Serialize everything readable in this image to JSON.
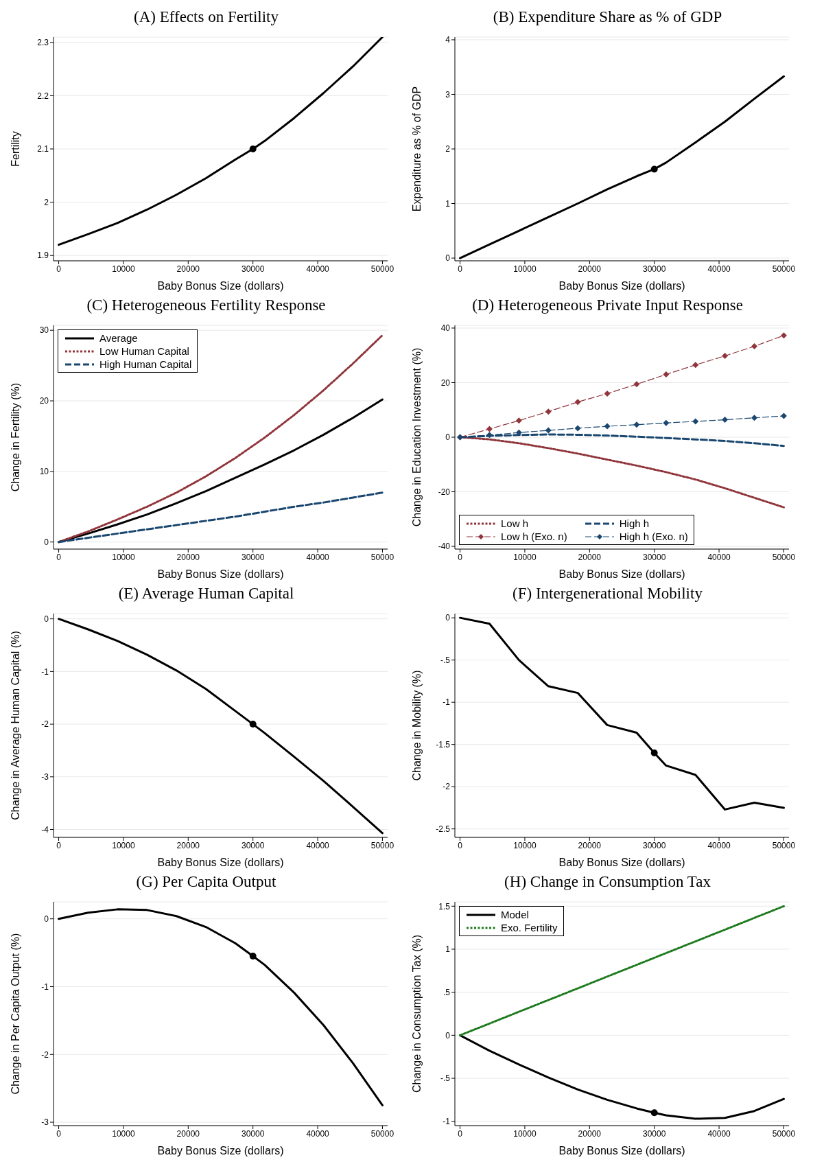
{
  "chart_data": [
    {
      "type": "line",
      "title": "(A) Effects on Fertility",
      "xlabel": "Baby Bonus Size (dollars)",
      "ylabel": "Fertility",
      "xlim": [
        -800,
        50800
      ],
      "xticks": [
        0,
        10000,
        20000,
        30000,
        40000,
        50000
      ],
      "ylim": [
        1.89,
        2.31
      ],
      "yticks": [
        1.9,
        2,
        2.1,
        2.2,
        2.3
      ],
      "grid": "y",
      "legend": false,
      "series": [
        {
          "color": "#000000",
          "line_style": "solid",
          "marker": "none",
          "x": [
            0,
            4545,
            9091,
            13636,
            18182,
            22727,
            27273,
            30000,
            31818,
            36364,
            40909,
            45455,
            50000
          ],
          "values": [
            1.92,
            1.94,
            1.961,
            1.986,
            2.014,
            2.045,
            2.08,
            2.1,
            2.115,
            2.158,
            2.205,
            2.255,
            2.31
          ]
        },
        {
          "type": "scatter",
          "color": "#000000",
          "marker": "circle",
          "x": [
            30000
          ],
          "values": [
            2.1
          ]
        }
      ]
    },
    {
      "type": "line",
      "title": "(B) Expenditure Share as % of GDP",
      "xlabel": "Baby Bonus Size (dollars)",
      "ylabel": "Expenditure as % of GDP",
      "xlim": [
        -800,
        50800
      ],
      "xticks": [
        0,
        10000,
        20000,
        30000,
        40000,
        50000
      ],
      "ylim": [
        -0.05,
        4.05
      ],
      "yticks": [
        0,
        1,
        2,
        3,
        4
      ],
      "grid": "y",
      "legend": false,
      "series": [
        {
          "color": "#000000",
          "line_style": "solid",
          "marker": "none",
          "x": [
            0,
            4545,
            9091,
            13636,
            18182,
            22727,
            27273,
            30000,
            31818,
            36364,
            40909,
            45455,
            50000
          ],
          "values": [
            0,
            0.25,
            0.5,
            0.75,
            1.0,
            1.26,
            1.5,
            1.63,
            1.75,
            2.12,
            2.5,
            2.92,
            3.33
          ]
        },
        {
          "type": "scatter",
          "color": "#000000",
          "marker": "circle",
          "x": [
            30000
          ],
          "values": [
            1.63
          ]
        }
      ]
    },
    {
      "type": "line",
      "title": "(C) Heterogeneous Fertility Response",
      "xlabel": "Baby Bonus Size (dollars)",
      "ylabel": "Change in Fertility (%)",
      "xlim": [
        -800,
        50800
      ],
      "xticks": [
        0,
        10000,
        20000,
        30000,
        40000,
        50000
      ],
      "ylim": [
        -1,
        30.7
      ],
      "yticks": [
        0,
        10,
        20,
        30
      ],
      "grid": "y",
      "legend": "top left",
      "series": [
        {
          "name": "Average",
          "color": "#000000",
          "line_style": "solid",
          "marker": "none",
          "x": [
            0,
            4545,
            9091,
            13636,
            18182,
            22727,
            27273,
            31818,
            36364,
            40909,
            45455,
            50000
          ],
          "values": [
            0,
            1.2,
            2.5,
            3.9,
            5.5,
            7.2,
            9.1,
            11.0,
            13.0,
            15.2,
            17.6,
            20.2
          ]
        },
        {
          "name": "Low Human Capital",
          "color": "#90353b",
          "line_style": "dotted",
          "marker": "none",
          "x": [
            0,
            4545,
            9091,
            13636,
            18182,
            22727,
            27273,
            31818,
            36364,
            40909,
            45455,
            50000
          ],
          "values": [
            0,
            1.5,
            3.2,
            5.0,
            7.0,
            9.3,
            11.9,
            14.8,
            18.0,
            21.5,
            25.3,
            29.3
          ]
        },
        {
          "name": "High Human Capital",
          "color": "#1a476f",
          "line_style": "dashed",
          "marker": "none",
          "x": [
            0,
            4545,
            9091,
            13636,
            18182,
            22727,
            27273,
            31818,
            36364,
            40909,
            45455,
            50000
          ],
          "values": [
            0,
            0.6,
            1.2,
            1.8,
            2.4,
            3.0,
            3.6,
            4.3,
            5.0,
            5.6,
            6.3,
            7.0
          ]
        }
      ]
    },
    {
      "type": "line",
      "title": "(D) Heterogeneous Private Input Response",
      "xlabel": "Baby Bonus Size (dollars)",
      "ylabel": "Change in Education Investment (%)",
      "xlim": [
        -800,
        50800
      ],
      "xticks": [
        0,
        10000,
        20000,
        30000,
        40000,
        50000
      ],
      "ylim": [
        -41,
        41
      ],
      "yticks": [
        -40,
        -20,
        0,
        20,
        40
      ],
      "grid": "y",
      "legend": "bottom left",
      "series": [
        {
          "name": "Low h",
          "color": "#90353b",
          "line_style": "dotted",
          "marker": "none",
          "x": [
            0,
            4545,
            9091,
            13636,
            18182,
            22727,
            27273,
            31818,
            36364,
            40909,
            45455,
            50000
          ],
          "values": [
            0,
            -0.8,
            -2.2,
            -4.0,
            -6.0,
            -8.2,
            -10.4,
            -12.8,
            -15.5,
            -18.7,
            -22.2,
            -25.7
          ]
        },
        {
          "name": "High h",
          "color": "#1a476f",
          "line_style": "dashed",
          "marker": "none",
          "x": [
            0,
            4545,
            9091,
            13636,
            18182,
            22727,
            27273,
            31818,
            36364,
            40909,
            45455,
            50000
          ],
          "values": [
            0,
            0.5,
            0.8,
            1.0,
            0.9,
            0.6,
            0.2,
            -0.3,
            -0.8,
            -1.4,
            -2.2,
            -3.2
          ]
        },
        {
          "name": "Low h (Exo. n)",
          "color": "#90353b",
          "line_style": "dashed",
          "marker": "diamond",
          "x": [
            0,
            4545,
            9091,
            13636,
            18182,
            22727,
            27273,
            31818,
            36364,
            40909,
            45455,
            50000
          ],
          "values": [
            0,
            3.0,
            6.1,
            9.4,
            12.9,
            16.0,
            19.4,
            23.0,
            26.5,
            29.8,
            33.3,
            37.3
          ]
        },
        {
          "name": "High h (Exo. n)",
          "color": "#1a476f",
          "line_style": "dashed",
          "marker": "diamond",
          "x": [
            0,
            4545,
            9091,
            13636,
            18182,
            22727,
            27273,
            31818,
            36364,
            40909,
            45455,
            50000
          ],
          "values": [
            0,
            0.8,
            1.7,
            2.5,
            3.3,
            4.0,
            4.6,
            5.2,
            5.8,
            6.4,
            7.1,
            7.8
          ]
        }
      ]
    },
    {
      "type": "line",
      "title": "(E) Average Human Capital",
      "xlabel": "Baby Bonus Size (dollars)",
      "ylabel": "Change in Average Human Capital (%)",
      "xlim": [
        -800,
        50800
      ],
      "xticks": [
        0,
        10000,
        20000,
        30000,
        40000,
        50000
      ],
      "ylim": [
        -4.15,
        0.1
      ],
      "yticks": [
        -4,
        -3,
        -2,
        -1,
        0
      ],
      "grid": "y",
      "legend": false,
      "series": [
        {
          "color": "#000000",
          "line_style": "solid",
          "marker": "none",
          "x": [
            0,
            4545,
            9091,
            13636,
            18182,
            22727,
            27273,
            30000,
            31818,
            36364,
            40909,
            45455,
            50000
          ],
          "values": [
            0,
            -0.2,
            -0.42,
            -0.68,
            -0.98,
            -1.33,
            -1.75,
            -2.0,
            -2.17,
            -2.62,
            -3.08,
            -3.57,
            -4.07
          ]
        },
        {
          "type": "scatter",
          "color": "#000000",
          "marker": "circle",
          "x": [
            30000
          ],
          "values": [
            -2.0
          ]
        }
      ]
    },
    {
      "type": "line",
      "title": "(F) Intergenerational Mobility",
      "xlabel": "Baby Bonus Size (dollars)",
      "ylabel": "Change in Mobility (%)",
      "xlim": [
        -800,
        50800
      ],
      "xticks": [
        0,
        10000,
        20000,
        30000,
        40000,
        50000
      ],
      "ylim": [
        -2.6,
        0.05
      ],
      "yticks": [
        {
          "value": -2.5,
          "label": "-2.5"
        },
        {
          "value": -2,
          "label": "-2"
        },
        {
          "value": -1.5,
          "label": "-1.5"
        },
        {
          "value": -1,
          "label": "-1"
        },
        {
          "value": -0.5,
          "label": "-.5"
        },
        {
          "value": 0,
          "label": "0"
        }
      ],
      "grid": "y",
      "legend": false,
      "series": [
        {
          "color": "#000000",
          "line_style": "solid",
          "marker": "none",
          "x": [
            0,
            4545,
            9091,
            13636,
            18182,
            22727,
            27273,
            30000,
            31818,
            36364,
            40909,
            45455,
            50000
          ],
          "values": [
            0,
            -0.07,
            -0.5,
            -0.81,
            -0.89,
            -1.27,
            -1.36,
            -1.6,
            -1.75,
            -1.86,
            -2.27,
            -2.19,
            -2.25
          ]
        },
        {
          "type": "scatter",
          "color": "#000000",
          "marker": "circle",
          "x": [
            30000
          ],
          "values": [
            -1.6
          ]
        }
      ]
    },
    {
      "type": "line",
      "title": "(G) Per Capita Output",
      "xlabel": "Baby Bonus Size (dollars)",
      "ylabel": "Change in Per Capita Output (%)",
      "xlim": [
        -800,
        50800
      ],
      "xticks": [
        0,
        10000,
        20000,
        30000,
        40000,
        50000
      ],
      "ylim": [
        -3.05,
        0.25
      ],
      "yticks": [
        -3,
        -2,
        -1,
        0
      ],
      "grid": "y",
      "legend": false,
      "series": [
        {
          "color": "#000000",
          "line_style": "solid",
          "marker": "none",
          "x": [
            0,
            4545,
            9091,
            13636,
            18182,
            22727,
            27273,
            30000,
            31818,
            36364,
            40909,
            45455,
            50000
          ],
          "values": [
            0,
            0.09,
            0.14,
            0.13,
            0.04,
            -0.12,
            -0.36,
            -0.55,
            -0.68,
            -1.09,
            -1.57,
            -2.13,
            -2.75
          ]
        },
        {
          "type": "scatter",
          "color": "#000000",
          "marker": "circle",
          "x": [
            30000
          ],
          "values": [
            -0.55
          ]
        }
      ]
    },
    {
      "type": "line",
      "title": "(H) Change in Consumption Tax",
      "xlabel": "Baby Bonus Size (dollars)",
      "ylabel": "Change in Consumption Tax (%)",
      "xlim": [
        -800,
        50800
      ],
      "xticks": [
        0,
        10000,
        20000,
        30000,
        40000,
        50000
      ],
      "ylim": [
        -1.05,
        1.55
      ],
      "yticks": [
        {
          "value": -1,
          "label": "-1"
        },
        {
          "value": -0.5,
          "label": "-.5"
        },
        {
          "value": 0,
          "label": "0"
        },
        {
          "value": 0.5,
          "label": ".5"
        },
        {
          "value": 1,
          "label": "1"
        },
        {
          "value": 1.5,
          "label": "1.5"
        }
      ],
      "grid": "y",
      "legend": "top left",
      "series": [
        {
          "name": "Model",
          "color": "#000000",
          "line_style": "solid",
          "marker": "none",
          "x": [
            0,
            4545,
            9091,
            13636,
            18182,
            22727,
            27273,
            30000,
            31818,
            36364,
            40909,
            45455,
            50000
          ],
          "values": [
            0,
            -0.18,
            -0.34,
            -0.49,
            -0.63,
            -0.75,
            -0.85,
            -0.9,
            -0.93,
            -0.97,
            -0.96,
            -0.88,
            -0.74
          ]
        },
        {
          "name": "Exo. Fertility",
          "color": "#1e7a1e",
          "line_style": "dotted",
          "marker": "none",
          "x": [
            0,
            4545,
            9091,
            13636,
            18182,
            22727,
            27273,
            31818,
            36364,
            40909,
            45455,
            50000
          ],
          "values": [
            0,
            0.136,
            0.273,
            0.409,
            0.545,
            0.682,
            0.818,
            0.955,
            1.091,
            1.227,
            1.364,
            1.5
          ]
        },
        {
          "type": "scatter",
          "color": "#000000",
          "marker": "circle",
          "x": [
            30000
          ],
          "values": [
            -0.9
          ]
        }
      ]
    }
  ]
}
